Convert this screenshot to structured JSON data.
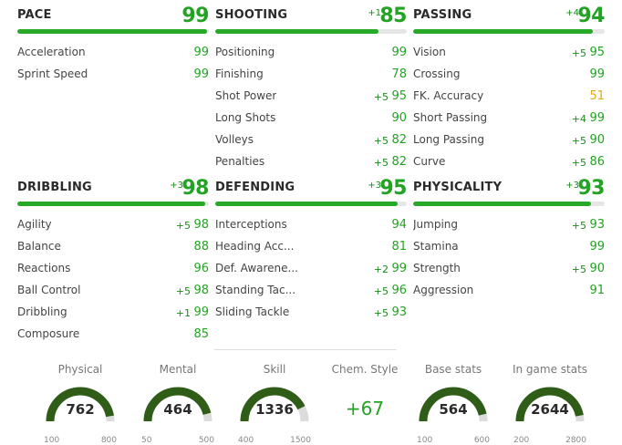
{
  "categories": [
    {
      "name": "PACE",
      "bonus": "",
      "value": "99",
      "fill": 0.99,
      "stats": [
        {
          "name": "Acceleration",
          "bonus": "",
          "value": "99"
        },
        {
          "name": "Sprint Speed",
          "bonus": "",
          "value": "99"
        }
      ]
    },
    {
      "name": "SHOOTING",
      "bonus": "+1",
      "value": "85",
      "fill": 0.85,
      "stats": [
        {
          "name": "Positioning",
          "bonus": "",
          "value": "99"
        },
        {
          "name": "Finishing",
          "bonus": "",
          "value": "78"
        },
        {
          "name": "Shot Power",
          "bonus": "+5",
          "value": "95"
        },
        {
          "name": "Long Shots",
          "bonus": "",
          "value": "90"
        },
        {
          "name": "Volleys",
          "bonus": "+5",
          "value": "82"
        },
        {
          "name": "Penalties",
          "bonus": "+5",
          "value": "82"
        }
      ]
    },
    {
      "name": "PASSING",
      "bonus": "+4",
      "value": "94",
      "fill": 0.94,
      "stats": [
        {
          "name": "Vision",
          "bonus": "+5",
          "value": "95"
        },
        {
          "name": "Crossing",
          "bonus": "",
          "value": "99"
        },
        {
          "name": "FK. Accuracy",
          "bonus": "",
          "value": "51",
          "color": "yellow"
        },
        {
          "name": "Short Passing",
          "bonus": "+4",
          "value": "99"
        },
        {
          "name": "Long Passing",
          "bonus": "+5",
          "value": "90"
        },
        {
          "name": "Curve",
          "bonus": "+5",
          "value": "86"
        }
      ]
    },
    {
      "name": "DRIBBLING",
      "bonus": "+3",
      "value": "98",
      "fill": 0.98,
      "stats": [
        {
          "name": "Agility",
          "bonus": "+5",
          "value": "98"
        },
        {
          "name": "Balance",
          "bonus": "",
          "value": "88"
        },
        {
          "name": "Reactions",
          "bonus": "",
          "value": "96"
        },
        {
          "name": "Ball Control",
          "bonus": "+5",
          "value": "98"
        },
        {
          "name": "Dribbling",
          "bonus": "+1",
          "value": "99"
        },
        {
          "name": "Composure",
          "bonus": "",
          "value": "85"
        }
      ]
    },
    {
      "name": "DEFENDING",
      "bonus": "+3",
      "value": "95",
      "fill": 0.95,
      "stats": [
        {
          "name": "Interceptions",
          "bonus": "",
          "value": "94"
        },
        {
          "name": "Heading Acc...",
          "bonus": "",
          "value": "81"
        },
        {
          "name": "Def. Awarene...",
          "bonus": "+2",
          "value": "99"
        },
        {
          "name": "Standing Tac...",
          "bonus": "+5",
          "value": "96"
        },
        {
          "name": "Sliding Tackle",
          "bonus": "+5",
          "value": "93"
        }
      ]
    },
    {
      "name": "PHYSICALITY",
      "bonus": "+3",
      "value": "93",
      "fill": 0.93,
      "stats": [
        {
          "name": "Jumping",
          "bonus": "+5",
          "value": "93"
        },
        {
          "name": "Stamina",
          "bonus": "",
          "value": "99"
        },
        {
          "name": "Strength",
          "bonus": "+5",
          "value": "90"
        },
        {
          "name": "Aggression",
          "bonus": "",
          "value": "91"
        }
      ]
    }
  ],
  "summary": [
    {
      "title": "Physical",
      "type": "gauge",
      "value": "762",
      "min": "100",
      "max": "800",
      "fraction": 0.946
    },
    {
      "title": "Mental",
      "type": "gauge",
      "value": "464",
      "min": "50",
      "max": "500",
      "fraction": 0.92
    },
    {
      "title": "Skill",
      "type": "gauge",
      "value": "1336",
      "min": "400",
      "max": "1500",
      "fraction": 0.851
    },
    {
      "title": "Chem. Style",
      "type": "text",
      "value": "+67"
    },
    {
      "title": "Base stats",
      "type": "gauge",
      "value": "564",
      "min": "100",
      "max": "600",
      "fraction": 0.928
    },
    {
      "title": "In game stats",
      "type": "gauge",
      "value": "2644",
      "min": "200",
      "max": "2800",
      "fraction": 0.94
    }
  ],
  "colors": {
    "accent": "#27a827",
    "track": "#e6e6e6",
    "gauge_dark": "#2f5d18",
    "gauge_track": "#dcdcdc",
    "warning": "#e0a912"
  }
}
